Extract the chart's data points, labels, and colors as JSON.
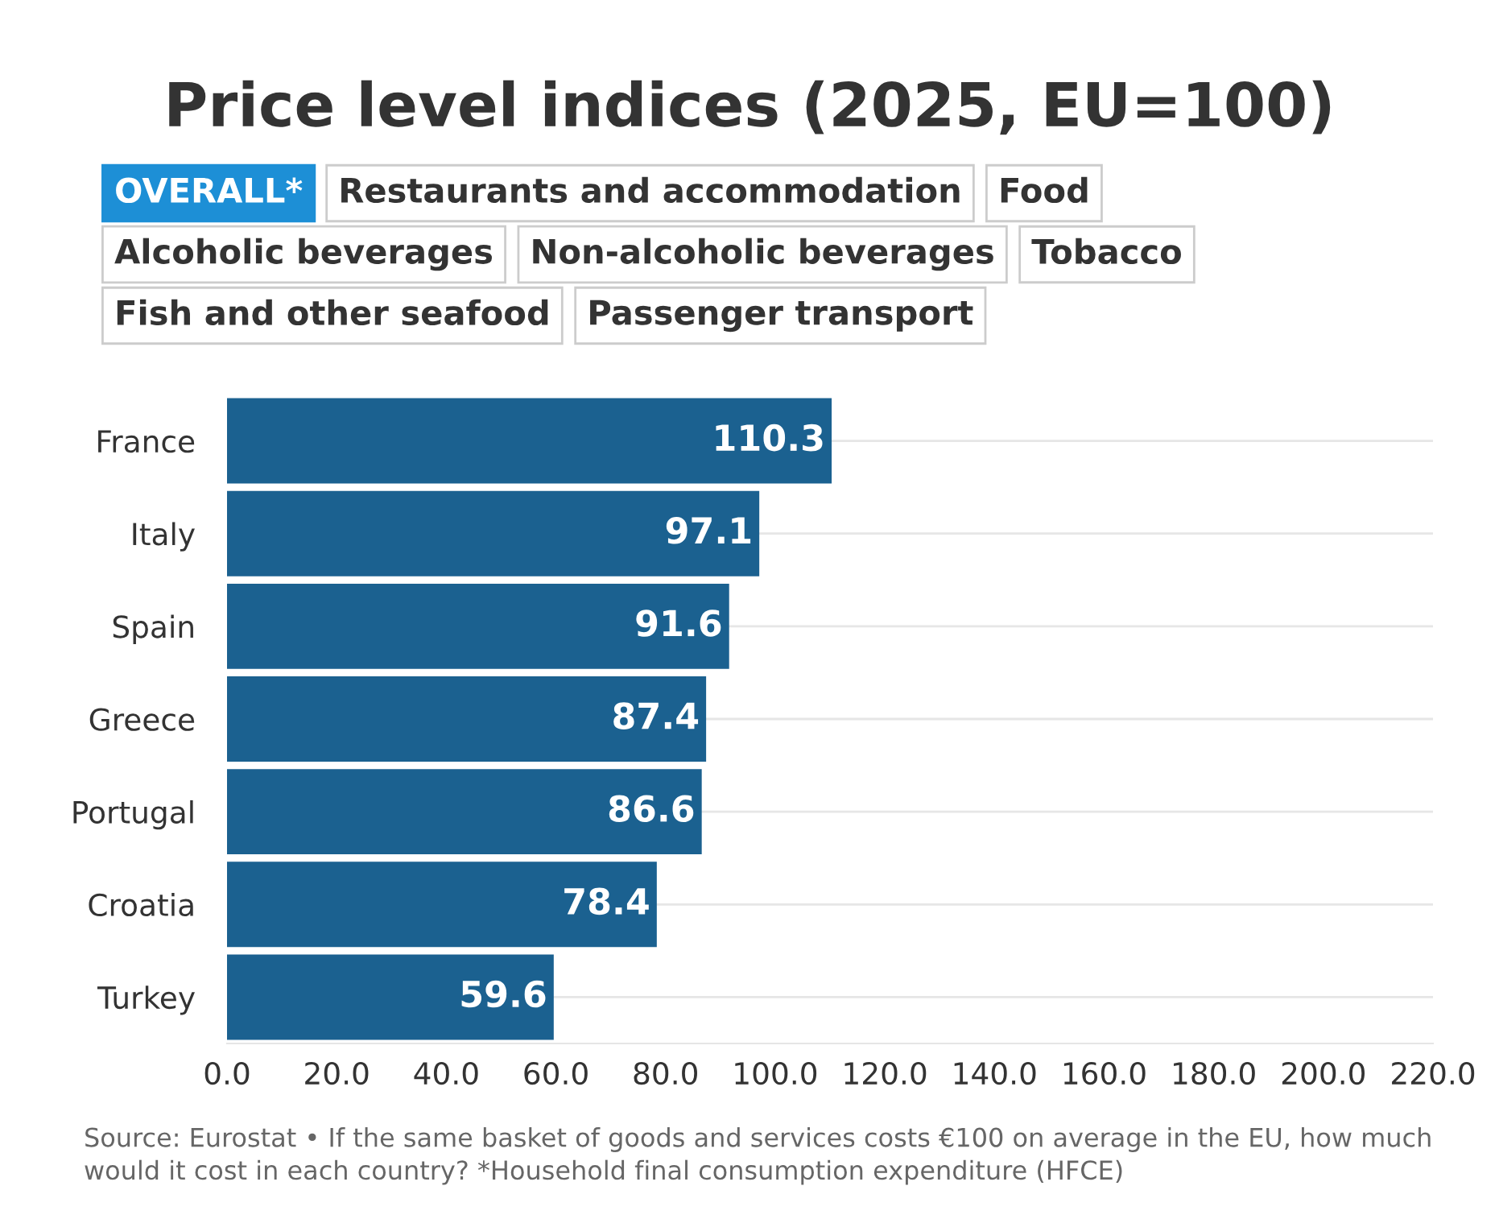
{
  "chart_data": {
    "type": "bar",
    "orientation": "horizontal",
    "title": "Price level indices (2025, EU=100)",
    "categories": [
      "France",
      "Italy",
      "Spain",
      "Greece",
      "Portugal",
      "Croatia",
      "Turkey"
    ],
    "values": [
      110.3,
      97.1,
      91.6,
      87.4,
      86.6,
      78.4,
      59.6
    ],
    "color": "#1b6190",
    "xlim": [
      0,
      220
    ],
    "xticks": [
      {
        "value": 0,
        "label": "0.0"
      },
      {
        "value": 20,
        "label": "20.0"
      },
      {
        "value": 40,
        "label": "40.0"
      },
      {
        "value": 60,
        "label": "60.0"
      },
      {
        "value": 80,
        "label": "80.0"
      },
      {
        "value": 100,
        "label": "100.0"
      },
      {
        "value": 120,
        "label": "120.0"
      },
      {
        "value": 140,
        "label": "140.0"
      },
      {
        "value": 160,
        "label": "160.0"
      },
      {
        "value": 180,
        "label": "180.0"
      },
      {
        "value": 200,
        "label": "200.0"
      },
      {
        "value": 220,
        "label": "220.0"
      }
    ],
    "grid": "y",
    "data_labels": true,
    "annotations": [
      "OVERALL*",
      "Restaurants and accommodation",
      "Food",
      "Alcoholic beverages",
      "Non-alcoholic beverages",
      "Tobacco",
      "Fish and other seafood",
      "Passenger transport",
      "Source: Eurostat • If the same basket of goods and services costs €100 on average in the EU, how much would it cost in each country? *Household final consumption expenditure (HFCE)"
    ]
  }
}
